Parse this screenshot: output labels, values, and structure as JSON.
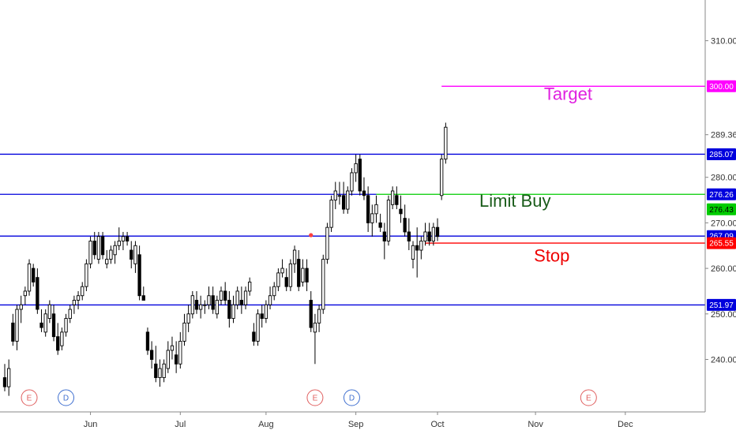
{
  "chart_data": {
    "type": "candlestick",
    "y_axis": {
      "range": [
        232,
        318
      ],
      "tick_labels": [
        {
          "value": 310,
          "text": "310.00"
        },
        {
          "value": 289.36,
          "text": "289.36"
        },
        {
          "value": 280,
          "text": "280.00"
        },
        {
          "value": 270,
          "text": "270.00"
        },
        {
          "value": 260,
          "text": "260.00"
        },
        {
          "value": 250,
          "text": "250.00"
        },
        {
          "value": 240,
          "text": "240.00"
        }
      ]
    },
    "x_axis": {
      "tick_labels": [
        {
          "index": 21,
          "text": "Jun"
        },
        {
          "index": 43,
          "text": "Jul"
        },
        {
          "index": 64,
          "text": "Aug"
        },
        {
          "index": 86,
          "text": "Sep"
        },
        {
          "index": 106,
          "text": "Oct"
        },
        {
          "index": 130,
          "text": "Nov"
        },
        {
          "index": 152,
          "text": "Dec"
        }
      ]
    },
    "candles": [
      [
        236,
        239,
        233,
        234
      ],
      [
        234,
        240,
        232,
        238
      ],
      [
        248,
        250,
        243,
        244
      ],
      [
        244,
        252,
        242,
        251
      ],
      [
        251,
        254,
        248,
        252
      ],
      [
        254,
        256,
        252,
        255
      ],
      [
        255,
        262,
        254,
        261
      ],
      [
        260,
        261,
        256,
        257
      ],
      [
        258,
        260,
        250,
        251
      ],
      [
        248,
        251,
        246,
        247
      ],
      [
        246,
        251,
        245,
        250
      ],
      [
        249,
        253,
        248,
        252
      ],
      [
        250,
        252,
        244,
        245
      ],
      [
        245,
        248,
        241,
        242
      ],
      [
        243,
        247,
        242,
        246
      ],
      [
        246,
        250,
        245,
        249
      ],
      [
        249,
        252,
        248,
        251
      ],
      [
        252,
        254,
        250,
        253
      ],
      [
        253,
        255,
        251,
        254
      ],
      [
        254,
        257,
        253,
        256
      ],
      [
        256,
        262,
        255,
        261
      ],
      [
        261,
        267,
        260,
        266
      ],
      [
        266,
        268,
        262,
        263
      ],
      [
        262,
        268,
        261,
        267
      ],
      [
        267,
        268,
        262,
        263
      ],
      [
        261,
        264,
        260,
        262
      ],
      [
        262,
        265,
        261,
        264
      ],
      [
        263,
        266,
        261,
        265
      ],
      [
        265,
        269,
        264,
        266
      ],
      [
        266,
        268,
        264,
        267
      ],
      [
        267,
        268,
        265,
        266
      ],
      [
        264,
        266,
        260,
        262
      ],
      [
        261,
        266,
        259,
        265
      ],
      [
        263,
        265,
        253,
        254
      ],
      [
        254,
        256,
        253,
        253
      ],
      [
        246,
        247,
        241,
        242
      ],
      [
        242,
        244,
        238,
        240
      ],
      [
        239,
        243,
        235,
        236
      ],
      [
        236,
        240,
        234,
        238
      ],
      [
        236,
        240,
        235,
        239
      ],
      [
        238,
        244,
        237,
        242
      ],
      [
        242,
        245,
        240,
        243
      ],
      [
        241,
        244,
        237,
        239
      ],
      [
        239,
        246,
        238,
        244
      ],
      [
        244,
        250,
        243,
        248
      ],
      [
        248,
        252,
        246,
        250
      ],
      [
        250,
        255,
        249,
        254
      ],
      [
        253,
        255,
        250,
        251
      ],
      [
        251,
        254,
        249,
        252
      ],
      [
        252,
        253,
        250,
        252
      ],
      [
        252,
        256,
        251,
        254
      ],
      [
        254,
        256,
        250,
        251
      ],
      [
        250,
        254,
        249,
        253
      ],
      [
        253,
        256,
        252,
        255
      ],
      [
        255,
        257,
        252,
        253
      ],
      [
        253,
        255,
        247,
        249
      ],
      [
        249,
        254,
        248,
        252
      ],
      [
        252,
        256,
        251,
        255
      ],
      [
        253,
        256,
        250,
        252
      ],
      [
        252,
        256,
        251,
        255
      ],
      [
        255,
        258,
        254,
        257
      ],
      [
        246,
        248,
        243,
        244
      ],
      [
        244,
        251,
        243,
        250
      ],
      [
        250,
        252,
        247,
        249
      ],
      [
        249,
        253,
        248,
        252
      ],
      [
        252,
        256,
        251,
        254
      ],
      [
        254,
        257,
        253,
        256
      ],
      [
        256,
        260,
        255,
        259
      ],
      [
        259,
        262,
        258,
        260
      ],
      [
        258,
        260,
        255,
        256
      ],
      [
        256,
        262,
        255,
        261
      ],
      [
        261,
        265,
        259,
        264
      ],
      [
        262,
        264,
        255,
        256
      ],
      [
        257,
        262,
        256,
        260
      ],
      [
        260,
        262,
        255,
        257
      ],
      [
        253,
        255,
        246,
        247
      ],
      [
        246,
        250,
        239,
        248
      ],
      [
        248,
        252,
        246,
        251
      ],
      [
        251,
        263,
        250,
        262
      ],
      [
        262,
        270,
        261,
        269
      ],
      [
        269,
        276,
        268,
        275
      ],
      [
        275,
        279,
        273,
        277
      ],
      [
        276,
        279,
        274,
        276
      ],
      [
        276,
        279,
        272,
        273
      ],
      [
        273,
        278,
        272,
        277
      ],
      [
        277,
        282,
        276,
        281
      ],
      [
        281,
        285,
        279,
        283
      ],
      [
        284,
        285,
        276,
        277
      ],
      [
        277,
        280,
        275,
        276
      ],
      [
        276,
        278,
        268,
        270
      ],
      [
        270,
        274,
        267,
        272
      ],
      [
        272,
        276,
        270,
        274
      ],
      [
        270,
        272,
        268,
        269
      ],
      [
        268,
        270,
        262,
        266
      ],
      [
        266,
        276,
        265,
        275
      ],
      [
        274,
        278,
        273,
        277
      ],
      [
        276,
        278,
        273,
        274
      ],
      [
        273,
        276,
        270,
        272
      ],
      [
        271,
        274,
        267,
        268
      ],
      [
        268,
        271,
        264,
        266
      ],
      [
        262,
        266,
        260,
        265
      ],
      [
        265,
        269,
        258,
        264
      ],
      [
        264,
        267,
        262,
        266
      ],
      [
        266,
        270,
        265,
        268
      ],
      [
        268,
        270,
        265,
        266
      ],
      [
        266,
        270,
        265,
        269
      ],
      [
        269,
        271,
        266,
        267
      ],
      [
        276,
        285,
        275,
        284
      ],
      [
        284,
        292,
        283,
        291
      ]
    ],
    "horizontal_lines": [
      {
        "value": 300.0,
        "label": "300.00",
        "color": "#ff00ff",
        "from_index": 107
      },
      {
        "value": 285.07,
        "label": "285.07",
        "color": "#0000dd",
        "from_index": 0
      },
      {
        "value": 276.26,
        "label": "276.26",
        "color": "#0000dd",
        "from_index": 0,
        "green_from_index": 91,
        "green_color": "#00cc00"
      },
      {
        "value": 267.09,
        "label": "267.09",
        "color": "#0000dd",
        "from_index": 0
      },
      {
        "value": 265.55,
        "label": "265.55",
        "color": "#ff0000",
        "from_index": 103
      },
      {
        "value": 251.97,
        "label": "251.97",
        "color": "#0000dd",
        "from_index": 0
      }
    ],
    "price_badges": [
      {
        "value": 300.0,
        "text": "300.00",
        "bg": "#ff00ff",
        "fg": "#ffffff"
      },
      {
        "value": 285.07,
        "text": "285.07",
        "bg": "#0000dd",
        "fg": "#ffffff"
      },
      {
        "value": 276.26,
        "text": "276.26",
        "bg": "#0000dd",
        "fg": "#ffffff"
      },
      {
        "value": 276.43,
        "text": "276.43",
        "bg": "#00cc00",
        "fg": "#000000"
      },
      {
        "value": 267.09,
        "text": "267.09",
        "bg": "#0000dd",
        "fg": "#ffffff"
      },
      {
        "value": 265.55,
        "text": "265.55",
        "bg": "#ff0000",
        "fg": "#ffffff"
      },
      {
        "value": 251.97,
        "text": "251.97",
        "bg": "#0000dd",
        "fg": "#ffffff"
      }
    ],
    "annotations": [
      {
        "text": "Target",
        "color": "#e020e0",
        "value": 297,
        "index": 138
      },
      {
        "text": "Limit Buy",
        "color": "#1a5c1a",
        "value": 273.5,
        "index": 125
      },
      {
        "text": "Stop",
        "color": "#ee0000",
        "value": 261.5,
        "index": 134
      }
    ],
    "events": [
      {
        "text": "E",
        "index": 6,
        "color": "#e06060"
      },
      {
        "text": "D",
        "index": 15,
        "color": "#4070d0"
      },
      {
        "text": "E",
        "index": 76,
        "color": "#e06060"
      },
      {
        "text": "D",
        "index": 85,
        "color": "#4070d0"
      },
      {
        "text": "E",
        "index": 143,
        "color": "#e06060"
      }
    ],
    "marker": {
      "index": 75,
      "value": 267.3,
      "color": "#ff4040"
    },
    "colors": {
      "up": "#ffffff",
      "down": "#000000",
      "wick": "#000000"
    }
  }
}
